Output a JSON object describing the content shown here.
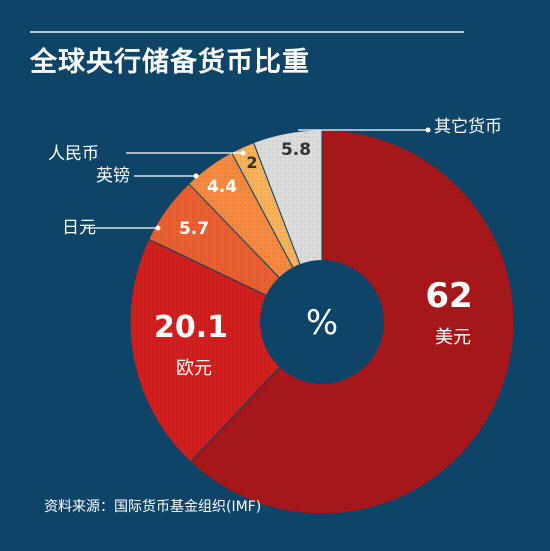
{
  "header": {
    "title": "全球央行储备货币比重"
  },
  "footer": {
    "source": "资料来源：国际货币基金组织(IMF)"
  },
  "colors": {
    "background": "#0d4468",
    "usd": "#a8171a",
    "eur": "#d11f1d",
    "jpy": "#ea5f2f",
    "gbp": "#f5893f",
    "cny": "#f8b25a",
    "other": "#dcdcdc"
  },
  "chart_data": {
    "type": "pie",
    "center_label": "%",
    "slices": [
      {
        "name": "美元",
        "value": 62,
        "value_label": "62",
        "color": "#a8171a"
      },
      {
        "name": "欧元",
        "value": 20.1,
        "value_label": "20.1",
        "color": "#d11f1d"
      },
      {
        "name": "日元",
        "value": 5.7,
        "value_label": "5.7",
        "color": "#ea5f2f"
      },
      {
        "name": "英镑",
        "value": 4.4,
        "value_label": "4.4",
        "color": "#f5893f"
      },
      {
        "name": "人民币",
        "value": 2,
        "value_label": "2",
        "color": "#f8b25a"
      },
      {
        "name": "其它货币",
        "value": 5.8,
        "value_label": "5.8",
        "color": "#dcdcdc"
      }
    ]
  }
}
